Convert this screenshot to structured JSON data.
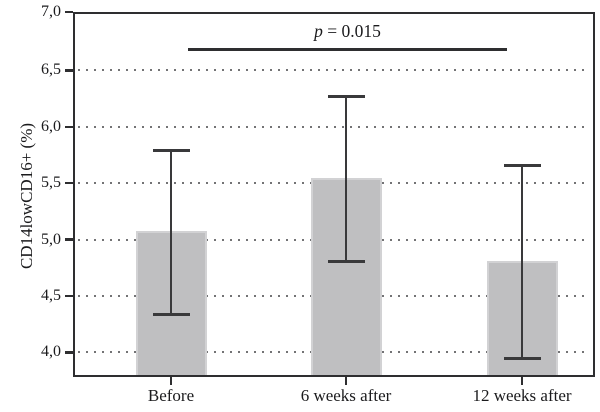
{
  "chart_data": {
    "type": "bar",
    "title": "",
    "xlabel": "",
    "ylabel": "CD14lowCD16+ (%)",
    "categories": [
      "Before",
      "6 weeks after",
      "12 weeks after"
    ],
    "values": [
      5.08,
      5.55,
      4.81
    ],
    "error_upper": [
      5.79,
      6.27,
      5.66
    ],
    "error_lower": [
      4.34,
      4.81,
      3.95
    ],
    "ylim": [
      3.8,
      7.0
    ],
    "yticks": [
      {
        "value": 7.0,
        "label": "7,0"
      },
      {
        "value": 6.5,
        "label": "6,5"
      },
      {
        "value": 6.0,
        "label": "6,0"
      },
      {
        "value": 5.5,
        "label": "5,5"
      },
      {
        "value": 5.0,
        "label": "5,0"
      },
      {
        "value": 4.5,
        "label": "4,5"
      },
      {
        "value": 4.0,
        "label": "4,0"
      }
    ],
    "grid": "horizontal-dotted",
    "legend": "none",
    "annotation": {
      "var": "p",
      "rest": " = 0.015",
      "display": "p = 0.015",
      "spans": [
        "Before",
        "12 weeks after"
      ]
    },
    "colors": {
      "bar_fill": "#bfbfc1",
      "bar_border": "#d2d2d4",
      "error_bar": "#39393b",
      "axis": "#2e2e30",
      "grid": "#737375",
      "text": "#1b1b1d",
      "background": "#ffffff"
    }
  }
}
